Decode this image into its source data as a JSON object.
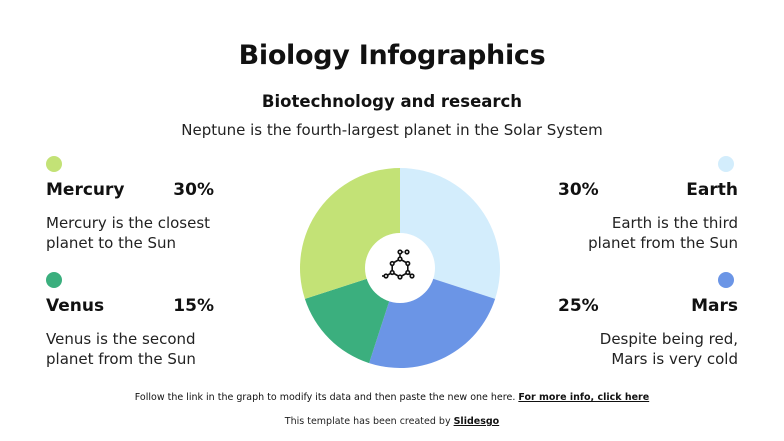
{
  "header": {
    "title": "Biology Infographics",
    "subtitle": "Biotechnology and research",
    "description": "Neptune is the fourth-largest planet in the Solar System"
  },
  "items": {
    "mercury": {
      "name": "Mercury",
      "percent": "30%",
      "text_line1": "Mercury is the closest",
      "text_line2": "planet to the Sun",
      "color": "#c3e276"
    },
    "venus": {
      "name": "Venus",
      "percent": "15%",
      "text_line1": "Venus is the second",
      "text_line2": "planet from the Sun",
      "color": "#3baf7e"
    },
    "earth": {
      "name": "Earth",
      "percent": "30%",
      "text_line1": "Earth is the third",
      "text_line2": "planet from the Sun",
      "color": "#d3edfc"
    },
    "mars": {
      "name": "Mars",
      "percent": "25%",
      "text_line1": "Despite being red,",
      "text_line2": "Mars is very cold",
      "color": "#6b95e6"
    }
  },
  "center_icon": "molecule-icon",
  "footer": {
    "note": "Follow the link in the graph to modify its data and then paste the new one here. ",
    "link": "For more info, click here",
    "credit_prefix": "This template has been created by ",
    "credit_link": "Slidesgo"
  },
  "chart_data": {
    "type": "pie",
    "variant": "donut",
    "title": "Biology Infographics",
    "categories": [
      "Earth",
      "Mars",
      "Venus",
      "Mercury"
    ],
    "values": [
      30,
      25,
      15,
      30
    ],
    "colors": [
      "#d3edfc",
      "#6b95e6",
      "#3baf7e",
      "#c3e276"
    ],
    "start_angle_deg": 0,
    "direction": "clockwise",
    "legend_position": "sides"
  }
}
